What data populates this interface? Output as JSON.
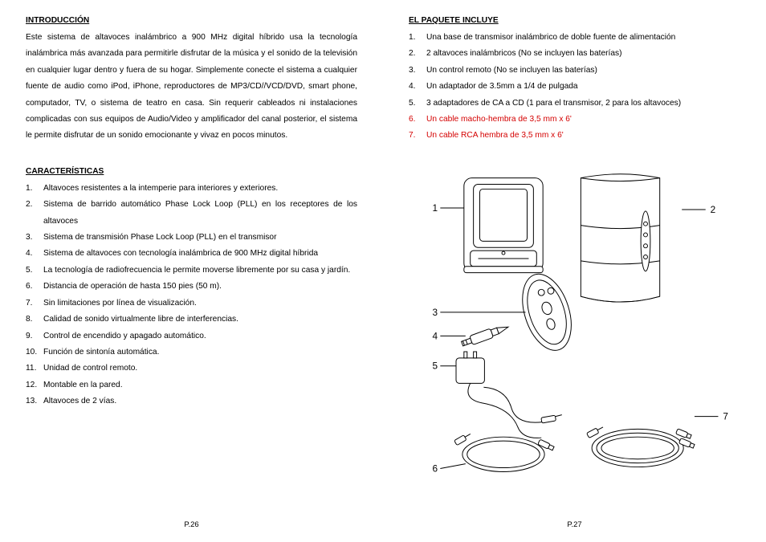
{
  "left": {
    "intro_title": "INTRODUCCIÓN",
    "intro_text": "Este sistema de altavoces inalámbrico a 900 MHz digital híbrido usa la tecnología inalámbrica más avanzada para permitirle disfrutar de la música y el sonido de la televisión en cualquier lugar dentro y fuera de su hogar. Simplemente conecte el sistema a cualquier fuente de audio como iPod, iPhone, reproductores de MP3/CD//VCD/DVD, smart phone, computador, TV, o sistema de teatro en casa. Sin requerir cableados ni instalaciones complicadas con sus equipos de Audio/Video y amplificador del canal posterior, el sistema le permite disfrutar de un sonido emocionante y vivaz en pocos minutos.",
    "feat_title": "CARACTERÍSTICAS",
    "features": [
      "Altavoces resistentes a la intemperie para interiores y exteriores.",
      "Sistema de barrido automático Phase Lock Loop (PLL) en los receptores de los altavoces",
      "Sistema de transmisión Phase Lock Loop (PLL) en el transmisor",
      "Sistema de altavoces con tecnología inalámbrica de 900 MHz digital híbrida",
      "La tecnología de radiofrecuencia le permite moverse libremente por su casa y jardín.",
      "Distancia de operación de hasta 150 pies (50 m).",
      "Sin limitaciones por línea de visualización.",
      "Calidad de sonido virtualmente libre de interferencias.",
      "Control de encendido y apagado automático.",
      "Función de sintonía automática.",
      "Unidad de control remoto.",
      "Montable en la pared.",
      "Altavoces de 2 vías."
    ],
    "page_num": "P.26"
  },
  "right": {
    "pkg_title": "EL PAQUETE INCLUYE",
    "pkg_items": [
      {
        "n": "1.",
        "t": "Una base de transmisor inalámbrico de doble fuente de alimentación",
        "red": false
      },
      {
        "n": "2.",
        "t": "2 altavoces inalámbricos (No se incluyen las baterías)",
        "red": false
      },
      {
        "n": "3.",
        "t": "Un control remoto (No se incluyen las baterías)",
        "red": false
      },
      {
        "n": "4.",
        "t": "Un adaptador de 3.5mm a 1/4 de pulgada",
        "red": false
      },
      {
        "n": "5.",
        "t": "3 adaptadores de CA a CD (1 para el transmisor, 2 para los altavoces)",
        "red": false
      },
      {
        "n": "6.",
        "t": "Un cable macho-hembra de 3,5 mm x 6'",
        "red": true
      },
      {
        "n": "7.",
        "t": "Un cable RCA hembra de 3,5 mm x 6'",
        "red": true
      }
    ],
    "diagram_labels": [
      "1",
      "2",
      "3",
      "4",
      "5",
      "6",
      "7"
    ],
    "page_num": "P.27",
    "svg": {
      "stroke": "#000000",
      "fill": "#ffffff",
      "text_color": "#000000",
      "font_size": 12,
      "line_width": 1.0
    }
  }
}
